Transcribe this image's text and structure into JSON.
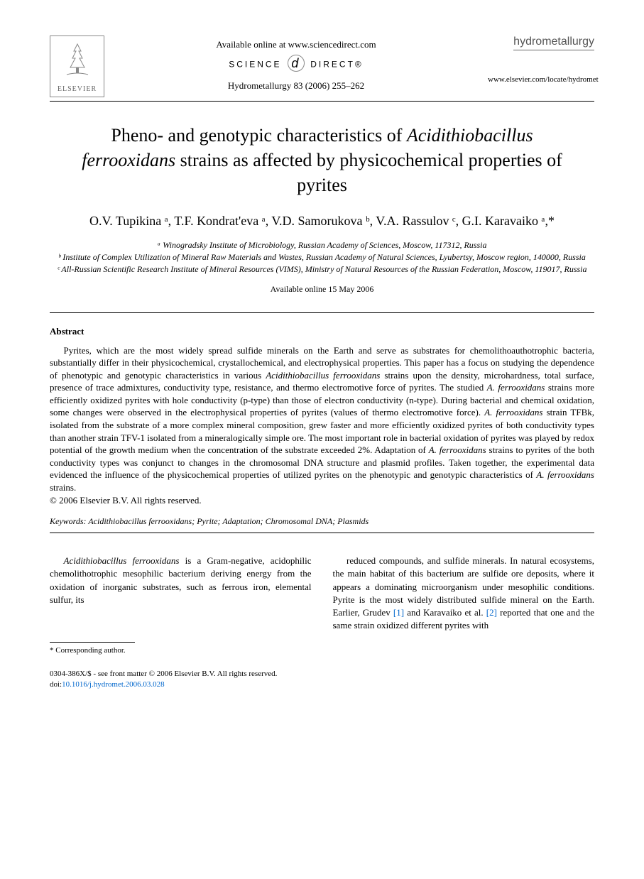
{
  "header": {
    "available_online": "Available online at www.sciencedirect.com",
    "science_direct_left": "SCIENCE",
    "science_direct_right": "DIRECT®",
    "citation": "Hydrometallurgy 83 (2006) 255–262",
    "publisher": "ELSEVIER",
    "journal_name": "hydrometallurgy",
    "journal_url": "www.elsevier.com/locate/hydromet"
  },
  "title": {
    "part1": "Pheno- and genotypic characteristics of ",
    "italic1": "Acidithiobacillus ferrooxidans",
    "part2": " strains as affected by physicochemical properties of pyrites"
  },
  "authors": "O.V. Tupikina ᵃ, T.F. Kondrat'eva ᵃ, V.D. Samorukova ᵇ, V.A. Rassulov ᶜ, G.I. Karavaiko ᵃ,*",
  "affiliations": {
    "a": "ᵃ Winogradsky Institute of Microbiology, Russian Academy of Sciences, Moscow, 117312, Russia",
    "b": "ᵇ Institute of Complex Utilization of Mineral Raw Materials and Wastes, Russian Academy of Natural Sciences, Lyubertsy, Moscow region, 140000, Russia",
    "c": "ᶜ All-Russian Scientific Research Institute of Mineral Resources (VIMS), Ministry of Natural Resources of the Russian Federation, Moscow, 119017, Russia"
  },
  "available_date": "Available online 15 May 2006",
  "abstract": {
    "heading": "Abstract",
    "body_html": "Pyrites, which are the most widely spread sulfide minerals on the Earth and serve as substrates for chemolithoauthotrophic bacteria, substantially differ in their physicochemical, crystallochemical, and electrophysical properties. This paper has a focus on studying the dependence of phenotypic and genotypic characteristics in various <span class='italic'>Acidithiobacillus ferrooxidans</span> strains upon the density, microhardness, total surface, presence of trace admixtures, conductivity type, resistance, and thermo electromotive force of pyrites. The studied <span class='italic'>A. ferrooxidans</span> strains more efficiently oxidized pyrites with hole conductivity (p-type) than those of electron conductivity (n-type). During bacterial and chemical oxidation, some changes were observed in the electrophysical properties of pyrites (values of thermo electromotive force). <span class='italic'>A. ferrooxidans</span> strain TFBk, isolated from the substrate of a more complex mineral composition, grew faster and more efficiently oxidized pyrites of both conductivity types than another strain TFV-1 isolated from a mineralogically simple ore. The most important role in bacterial oxidation of pyrites was played by redox potential of the growth medium when the concentration of the substrate exceeded 2%. Adaptation of <span class='italic'>A. ferrooxidans</span> strains to pyrites of the both conductivity types was conjunct to changes in the chromosomal DNA structure and plasmid profiles. Taken together, the experimental data evidenced the influence of the physicochemical properties of utilized pyrites on the phenotypic and genotypic characteristics of <span class='italic'>A. ferrooxidans</span> strains.",
    "copyright": "© 2006 Elsevier B.V. All rights reserved."
  },
  "keywords": {
    "label": "Keywords:",
    "text": " Acidithiobacillus ferrooxidans; Pyrite; Adaptation; Chromosomal DNA; Plasmids"
  },
  "body": {
    "col1_html": "<span class='italic'>Acidithiobacillus ferrooxidans</span> is a Gram-negative, acidophilic chemolithotrophic mesophilic bacterium deriving energy from the oxidation of inorganic substrates, such as ferrous iron, elemental sulfur, its",
    "col2_html": "reduced compounds, and sulfide minerals. In natural ecosystems, the main habitat of this bacterium are sulfide ore deposits, where it appears a dominating microorganism under mesophilic conditions. Pyrite is the most widely distributed sulfide mineral on the Earth. Earlier, Grudev <span class='ref-link'>[1]</span> and Karavaiko et al. <span class='ref-link'>[2]</span> reported that one and the same strain oxidized different pyrites with"
  },
  "footnote": "* Corresponding author.",
  "footer": {
    "line1": "0304-386X/$ - see front matter © 2006 Elsevier B.V. All rights reserved.",
    "doi_label": "doi:",
    "doi": "10.1016/j.hydromet.2006.03.028"
  }
}
